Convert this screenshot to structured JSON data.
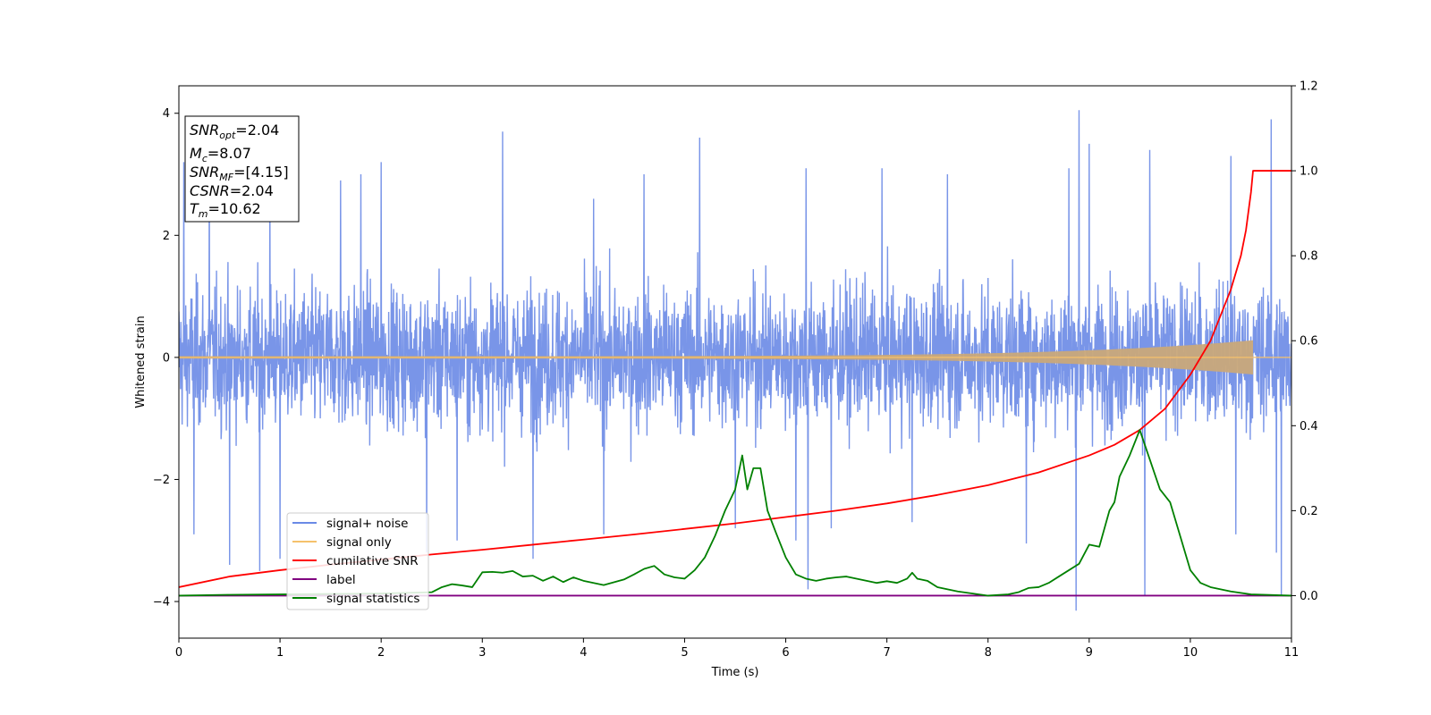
{
  "chart_data": {
    "type": "line",
    "title": "",
    "xlabel": "Time (s)",
    "ylabel": "Whitened strain",
    "xlim": [
      0,
      11
    ],
    "ylim": [
      -4.6,
      4.45
    ],
    "y2lim": [
      -0.1,
      1.2
    ],
    "xticks": [
      "0",
      "1",
      "2",
      "3",
      "4",
      "5",
      "6",
      "7",
      "8",
      "9",
      "10",
      "11"
    ],
    "yticks": [
      "−4",
      "−2",
      "0",
      "2",
      "4"
    ],
    "y2ticks": [
      "0.0",
      "0.2",
      "0.4",
      "0.6",
      "0.8",
      "1.0",
      "1.2"
    ],
    "grid": false,
    "legend_position": "lower-left",
    "info_box": {
      "snr_opt": "SNR",
      "snr_opt_sub": "opt",
      "snr_opt_val": "=2.04",
      "mc": "M",
      "mc_sub": "c",
      "mc_val": "=8.07",
      "snr_mf": "SNR",
      "snr_mf_sub": "MF",
      "snr_mf_val": "=[4.15]",
      "csnr": "CSNR",
      "csnr_val": "=2.04",
      "tm": "T",
      "tm_sub": "m",
      "tm_val": "=10.62"
    },
    "series": [
      {
        "name": "signal+ noise",
        "color": "#6a8ae6",
        "axis": "left",
        "description_stats": {
          "typical_abs_max": 2.6,
          "max": 4.05,
          "min": -4.15
        },
        "spikes": [
          [
            0.05,
            3.2
          ],
          [
            0.3,
            3.1
          ],
          [
            0.9,
            3.0
          ],
          [
            1.6,
            2.9
          ],
          [
            1.8,
            3.0
          ],
          [
            2.0,
            3.2
          ],
          [
            3.2,
            3.7
          ],
          [
            4.1,
            2.6
          ],
          [
            4.6,
            3.0
          ],
          [
            5.15,
            3.6
          ],
          [
            5.5,
            3.1
          ],
          [
            6.2,
            3.1
          ],
          [
            6.95,
            3.1
          ],
          [
            7.6,
            3.0
          ],
          [
            8.8,
            3.1
          ],
          [
            8.9,
            4.05
          ],
          [
            9.0,
            3.5
          ],
          [
            9.6,
            3.4
          ],
          [
            10.4,
            3.3
          ],
          [
            10.8,
            3.9
          ],
          [
            0.15,
            -2.9
          ],
          [
            0.5,
            -3.4
          ],
          [
            0.8,
            -3.5
          ],
          [
            1.0,
            -3.3
          ],
          [
            2.45,
            -3.2
          ],
          [
            2.75,
            -3.0
          ],
          [
            3.5,
            -3.3
          ],
          [
            4.2,
            -2.9
          ],
          [
            5.5,
            -2.8
          ],
          [
            6.1,
            -3.0
          ],
          [
            6.22,
            -3.8
          ],
          [
            6.45,
            -2.8
          ],
          [
            7.25,
            -2.7
          ],
          [
            8.38,
            -3.05
          ],
          [
            8.87,
            -4.15
          ],
          [
            9.55,
            -3.9
          ],
          [
            10.45,
            -2.9
          ],
          [
            10.85,
            -3.2
          ],
          [
            10.9,
            -3.9
          ]
        ]
      },
      {
        "name": "signal only",
        "color": "#f5c16c",
        "axis": "left",
        "envelope": {
          "start_amp": 0.02,
          "end_amp": 0.28,
          "merger_time": 10.62
        }
      },
      {
        "name": "cumilative SNR",
        "color": "#ff0000",
        "axis": "right",
        "x": [
          0,
          0.5,
          1,
          1.5,
          2,
          2.5,
          3,
          3.5,
          4,
          4.5,
          5,
          5.5,
          6,
          6.5,
          7,
          7.5,
          8,
          8.5,
          9,
          9.25,
          9.5,
          9.75,
          10,
          10.2,
          10.4,
          10.5,
          10.55,
          10.6,
          10.62,
          11
        ],
        "y": [
          0.02,
          0.045,
          0.06,
          0.073,
          0.085,
          0.097,
          0.108,
          0.12,
          0.132,
          0.144,
          0.157,
          0.17,
          0.185,
          0.2,
          0.217,
          0.237,
          0.26,
          0.29,
          0.33,
          0.355,
          0.39,
          0.44,
          0.52,
          0.6,
          0.72,
          0.8,
          0.86,
          0.95,
          1.0,
          1.0
        ]
      },
      {
        "name": "label",
        "color": "#800080",
        "axis": "right",
        "x": [
          0,
          11
        ],
        "y": [
          0.0,
          0.0
        ]
      },
      {
        "name": "signal statistics",
        "color": "#008000",
        "axis": "right",
        "x": [
          0,
          0.5,
          1,
          1.5,
          2,
          2.5,
          2.6,
          2.7,
          2.8,
          2.9,
          3.0,
          3.1,
          3.2,
          3.3,
          3.4,
          3.5,
          3.6,
          3.7,
          3.8,
          3.9,
          4.0,
          4.2,
          4.4,
          4.5,
          4.6,
          4.7,
          4.8,
          4.9,
          5.0,
          5.1,
          5.2,
          5.3,
          5.4,
          5.5,
          5.57,
          5.62,
          5.68,
          5.75,
          5.82,
          5.9,
          6.0,
          6.1,
          6.2,
          6.3,
          6.4,
          6.5,
          6.6,
          6.7,
          6.8,
          6.9,
          7.0,
          7.1,
          7.2,
          7.25,
          7.3,
          7.4,
          7.5,
          7.7,
          8.0,
          8.2,
          8.3,
          8.4,
          8.5,
          8.6,
          8.7,
          8.8,
          8.9,
          9.0,
          9.1,
          9.2,
          9.25,
          9.3,
          9.4,
          9.5,
          9.6,
          9.7,
          9.8,
          9.9,
          10.0,
          10.1,
          10.2,
          10.4,
          10.6,
          11
        ],
        "y": [
          0.0,
          0.002,
          0.003,
          0.004,
          0.005,
          0.008,
          0.02,
          0.027,
          0.024,
          0.02,
          0.055,
          0.056,
          0.054,
          0.058,
          0.045,
          0.047,
          0.035,
          0.045,
          0.032,
          0.043,
          0.035,
          0.025,
          0.038,
          0.05,
          0.063,
          0.07,
          0.05,
          0.043,
          0.04,
          0.06,
          0.09,
          0.14,
          0.2,
          0.25,
          0.33,
          0.25,
          0.3,
          0.3,
          0.2,
          0.15,
          0.09,
          0.05,
          0.04,
          0.035,
          0.04,
          0.043,
          0.045,
          0.04,
          0.035,
          0.03,
          0.034,
          0.03,
          0.04,
          0.054,
          0.04,
          0.035,
          0.02,
          0.01,
          0.0,
          0.003,
          0.008,
          0.018,
          0.02,
          0.03,
          0.045,
          0.06,
          0.075,
          0.12,
          0.115,
          0.2,
          0.22,
          0.28,
          0.33,
          0.39,
          0.32,
          0.25,
          0.22,
          0.14,
          0.06,
          0.03,
          0.02,
          0.01,
          0.003,
          0.0
        ]
      }
    ]
  }
}
